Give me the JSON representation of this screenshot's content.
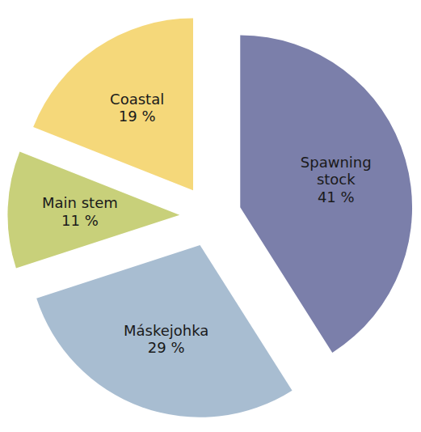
{
  "chart_data": {
    "type": "pie",
    "categories": [
      "Spawning\nstock",
      "Máskejohka",
      "Main stem",
      "Coastal"
    ],
    "values": [
      41,
      29,
      11,
      19
    ],
    "value_labels": [
      "41 %",
      "29 %",
      "11 %",
      "19 %"
    ],
    "colors": [
      "#7b7faa",
      "#a8bdd1",
      "#c8d07a",
      "#f5d87a"
    ],
    "data_labels": true
  }
}
